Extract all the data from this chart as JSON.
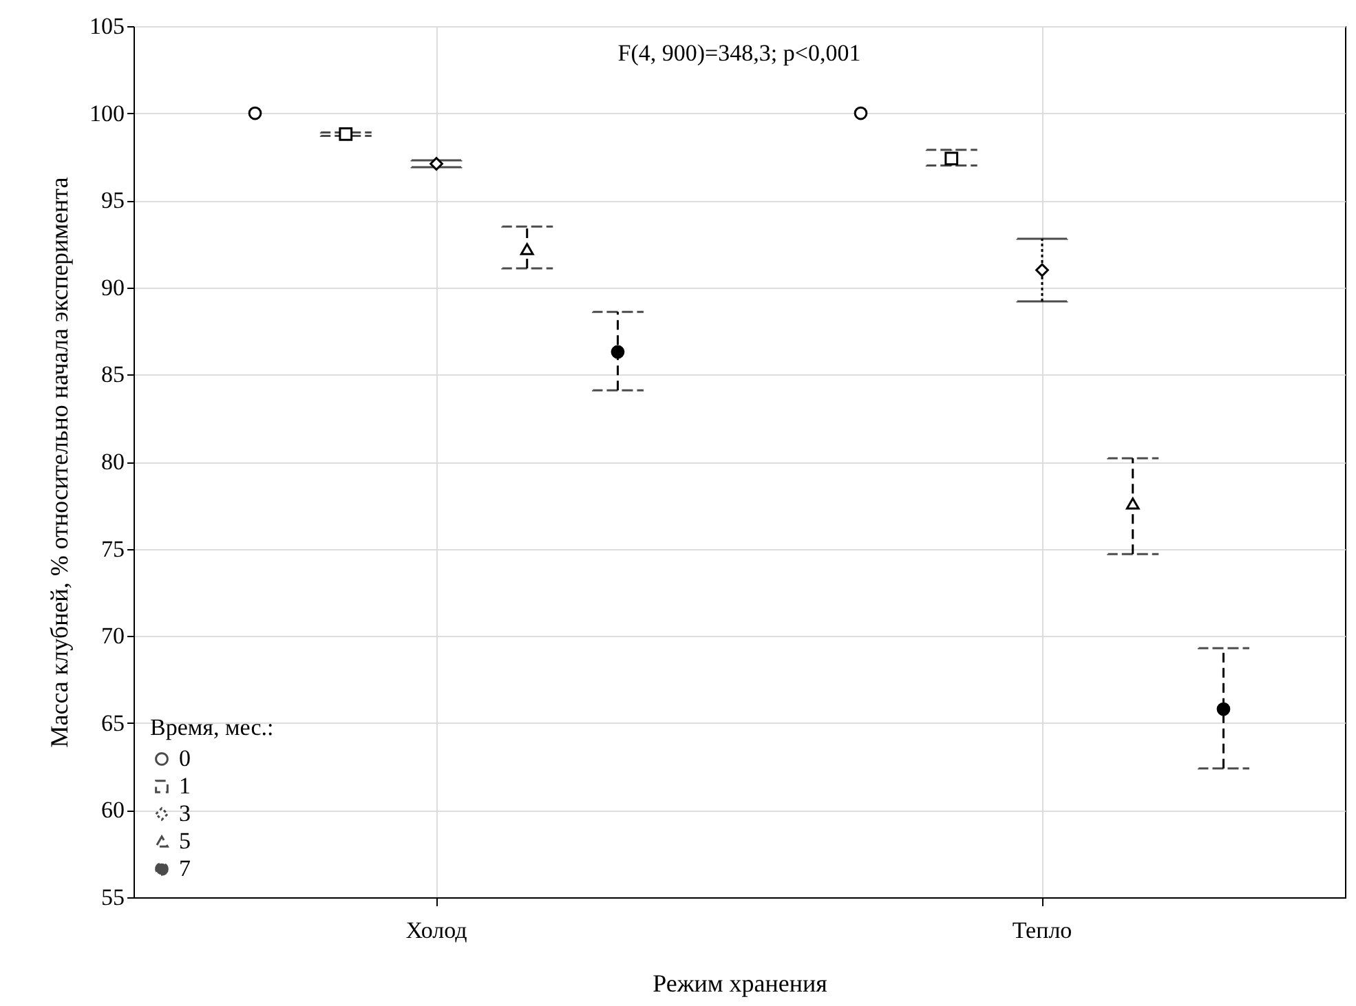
{
  "chart_data": {
    "type": "scatter",
    "xlabel": "Режим хранения",
    "ylabel": "Масса клубней, % относительно начала эксперимента",
    "legend_title": "Время, мес.:",
    "annotations": [
      "F(4, 900)=348,3; p<0,001"
    ],
    "categories": [
      "Холод",
      "Тепло"
    ],
    "series": [
      {
        "name": "0",
        "color": "#000000",
        "marker": "circle",
        "line_style": "solid",
        "values": [
          100,
          100
        ],
        "errors": [
          null,
          null
        ]
      },
      {
        "name": "1",
        "color": "#000000",
        "marker": "square",
        "line_style": "dashed",
        "values": [
          98.8,
          97.4
        ],
        "errors": [
          [
            98.7,
            98.9
          ],
          [
            97.0,
            97.9
          ]
        ]
      },
      {
        "name": "3",
        "color": "#000000",
        "marker": "diamond",
        "line_style": "dotted",
        "values": [
          97.1,
          91.0
        ],
        "errors": [
          [
            96.9,
            97.3
          ],
          [
            89.2,
            92.8
          ]
        ]
      },
      {
        "name": "5",
        "color": "#000000",
        "marker": "triangle",
        "line_style": "dashed",
        "values": [
          92.2,
          77.6
        ],
        "errors": [
          [
            91.1,
            93.5
          ],
          [
            74.7,
            80.2
          ]
        ]
      },
      {
        "name": "7",
        "color": "#000000",
        "marker": "circle",
        "line_style": "dashed",
        "values": [
          86.3,
          65.8
        ],
        "errors": [
          [
            84.1,
            88.6
          ],
          [
            62.4,
            69.3
          ]
        ]
      }
    ],
    "ylim": [
      55,
      105
    ],
    "yticks": [
      55,
      60,
      65,
      70,
      75,
      80,
      85,
      90,
      95,
      100,
      105
    ],
    "grid": true,
    "legend": "bottom left"
  }
}
